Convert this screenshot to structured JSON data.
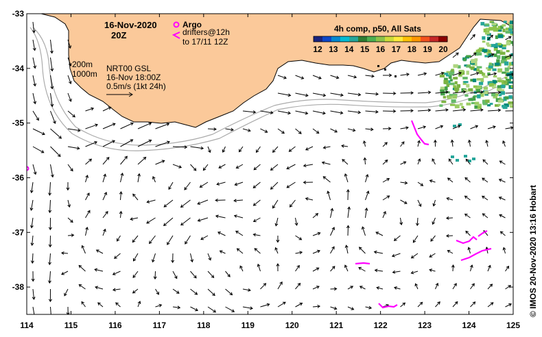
{
  "header": {
    "date": "16-Nov-2020",
    "hour": "20Z",
    "argo_label": "Argo",
    "drifters_line1": "drifters@12h",
    "drifters_line2": "to 17/11 12Z",
    "product_line1": "NRT00 GSL",
    "product_line2": "16-Nov 18:00Z",
    "scale_label": "0.5m/s (1kt 24h)",
    "isobath_200": "200m",
    "isobath_1000": "1000m"
  },
  "colorbar": {
    "title": "4h comp, p50, All Sats",
    "ticks": [
      "12",
      "13",
      "14",
      "15",
      "16",
      "17",
      "18",
      "19",
      "20"
    ],
    "colors": [
      "#1a237e",
      "#0d47c8",
      "#0288d1",
      "#00bcd4",
      "#26a69a",
      "#2e7d32",
      "#4caf50",
      "#8bc34a",
      "#cddc39",
      "#ffeb3b",
      "#ffc107",
      "#ff9800",
      "#f4511e",
      "#c62828",
      "#8b0000"
    ]
  },
  "axes": {
    "x_ticks": [
      "114",
      "115",
      "116",
      "117",
      "118",
      "119",
      "120",
      "121",
      "122",
      "123",
      "124",
      "125"
    ],
    "y_ticks": [
      "-33",
      "-34",
      "-35",
      "-36",
      "-37",
      "-38"
    ],
    "lon_range": [
      114,
      125
    ],
    "lat_range": [
      -38.5,
      -33
    ]
  },
  "credit": "© IMOS 20-Nov-2020 13:16 Hobart",
  "colors": {
    "land": "#fbc99a",
    "drifter": "#ff00ff",
    "arrow": "#000000",
    "isobath": "#aaaaaa"
  }
}
